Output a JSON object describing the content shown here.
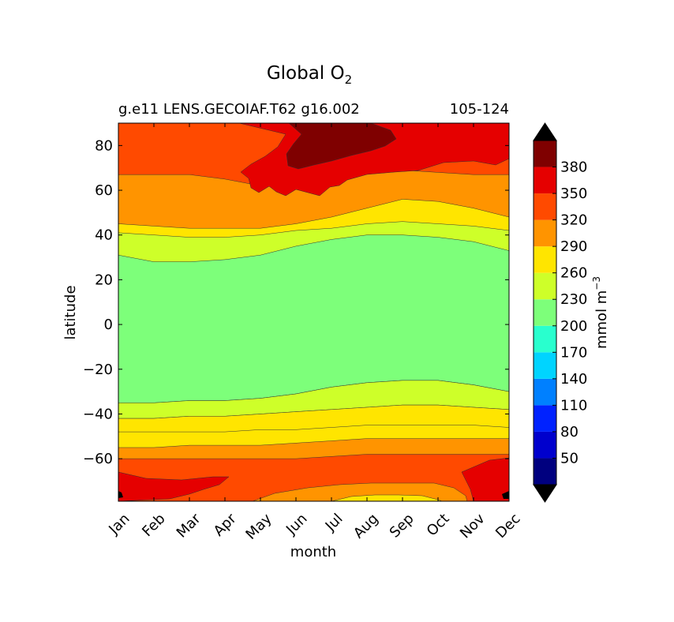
{
  "chart_data": {
    "type": "heatmap",
    "title": "Global O",
    "title_subscript": "2",
    "subtitle_left": "g.e11 LENS.GECOIAF.T62 g16.002",
    "subtitle_right": "105-124",
    "xlabel": "month",
    "ylabel": "latitude",
    "x_categories": [
      "Jan",
      "Feb",
      "Mar",
      "Apr",
      "May",
      "Jun",
      "Jul",
      "Aug",
      "Sep",
      "Oct",
      "Nov",
      "Dec"
    ],
    "y_ticks": [
      80,
      60,
      40,
      20,
      0,
      -20,
      -40,
      -60
    ],
    "y_tick_labels": [
      "80",
      "60",
      "40",
      "20",
      "0",
      "−20",
      "−40",
      "−60"
    ],
    "ylim": [
      -79,
      90
    ],
    "colorbar": {
      "label": "mmol m",
      "label_superscript": "−3",
      "levels": [
        20,
        50,
        80,
        110,
        140,
        170,
        200,
        230,
        260,
        290,
        320,
        350,
        380,
        410
      ],
      "tick_labels": [
        "50",
        "80",
        "110",
        "140",
        "170",
        "200",
        "230",
        "260",
        "290",
        "320",
        "350",
        "380"
      ],
      "colors": [
        "#00007f",
        "#0000cd",
        "#0022ff",
        "#0080ff",
        "#00d4ff",
        "#29ffce",
        "#7dff7a",
        "#ceff29",
        "#ffe500",
        "#ff9400",
        "#ff4a00",
        "#e50000",
        "#7f0000"
      ],
      "under_color": "#000000",
      "over_color": "#000000"
    },
    "layers": [
      {
        "range": "320-350",
        "color": "#ff4a00",
        "top": [
          90,
          90,
          90,
          90,
          90,
          90,
          90,
          90,
          90,
          90,
          90,
          90
        ],
        "bottom": [
          -79,
          -79,
          -79,
          -79,
          -79,
          -79,
          -79,
          -79,
          -79,
          -79,
          -79,
          -79
        ]
      },
      {
        "range": "290-320",
        "color": "#ff9400",
        "top": [
          67,
          67,
          67,
          65,
          62,
          61,
          64,
          68,
          69,
          68,
          67,
          67
        ],
        "bottom": [
          -60,
          -60,
          -60,
          -60,
          -60,
          -60,
          -59,
          -58,
          -58,
          -58,
          -58,
          -58
        ]
      },
      {
        "range": "260-290",
        "color": "#ffe500",
        "top": [
          45,
          44,
          43,
          43,
          43,
          45,
          48,
          52,
          56,
          55,
          52,
          48
        ],
        "bottom": [
          -55,
          -55,
          -54,
          -54,
          -54,
          -53,
          -52,
          -51,
          -51,
          -51,
          -51,
          -51
        ]
      },
      {
        "range": "230-260",
        "color": "#ceff29",
        "top": [
          41,
          40,
          39,
          39,
          40,
          42,
          43,
          45,
          46,
          45,
          44,
          42
        ],
        "bottom": [
          -47,
          -46,
          -46,
          -45,
          -45,
          -44,
          -43,
          -43,
          -42,
          -42,
          -43,
          -44
        ]
      },
      {
        "range": "200-230",
        "color": "#7dff7a",
        "top": [
          31,
          28,
          28,
          29,
          31,
          35,
          38,
          40,
          40,
          39,
          37,
          33
        ],
        "bottom": [
          -35,
          -35,
          -34,
          -34,
          -33,
          -31,
          -28,
          -26,
          -25,
          -25,
          -27,
          -30
        ]
      },
      {
        "range": "230-260",
        "color": "#ceff29",
        "top": [
          -35,
          -35,
          -34,
          -34,
          -33,
          -31,
          -28,
          -26,
          -25,
          -25,
          -27,
          -30
        ],
        "bottom": [
          -42,
          -42,
          -41,
          -41,
          -40,
          -39,
          -38,
          -37,
          -36,
          -36,
          -37,
          -38
        ]
      },
      {
        "range": "260-290",
        "color": "#ffe500",
        "top": [
          -42,
          -42,
          -41,
          -41,
          -40,
          -39,
          -38,
          -37,
          -36,
          -36,
          -37,
          -38
        ],
        "bottom": [
          -48,
          -48,
          -48,
          -48,
          -47,
          -47,
          -46,
          -45,
          -45,
          -45,
          -45,
          -46
        ]
      }
    ],
    "blobs": [
      {
        "range": "350-380",
        "color": "#e50000",
        "region": "north polar, May-Dec"
      },
      {
        "range": "380-410",
        "color": "#7f0000",
        "region": "north polar, Jul-Aug"
      },
      {
        "range": "350-380",
        "color": "#e50000",
        "region": "south polar edges"
      },
      {
        "range": "290-320",
        "color": "#ff9400",
        "region": "south polar, Jun-Oct"
      },
      {
        "range": "260-290",
        "color": "#ffe500",
        "region": "south polar, Aug-Oct"
      }
    ]
  }
}
